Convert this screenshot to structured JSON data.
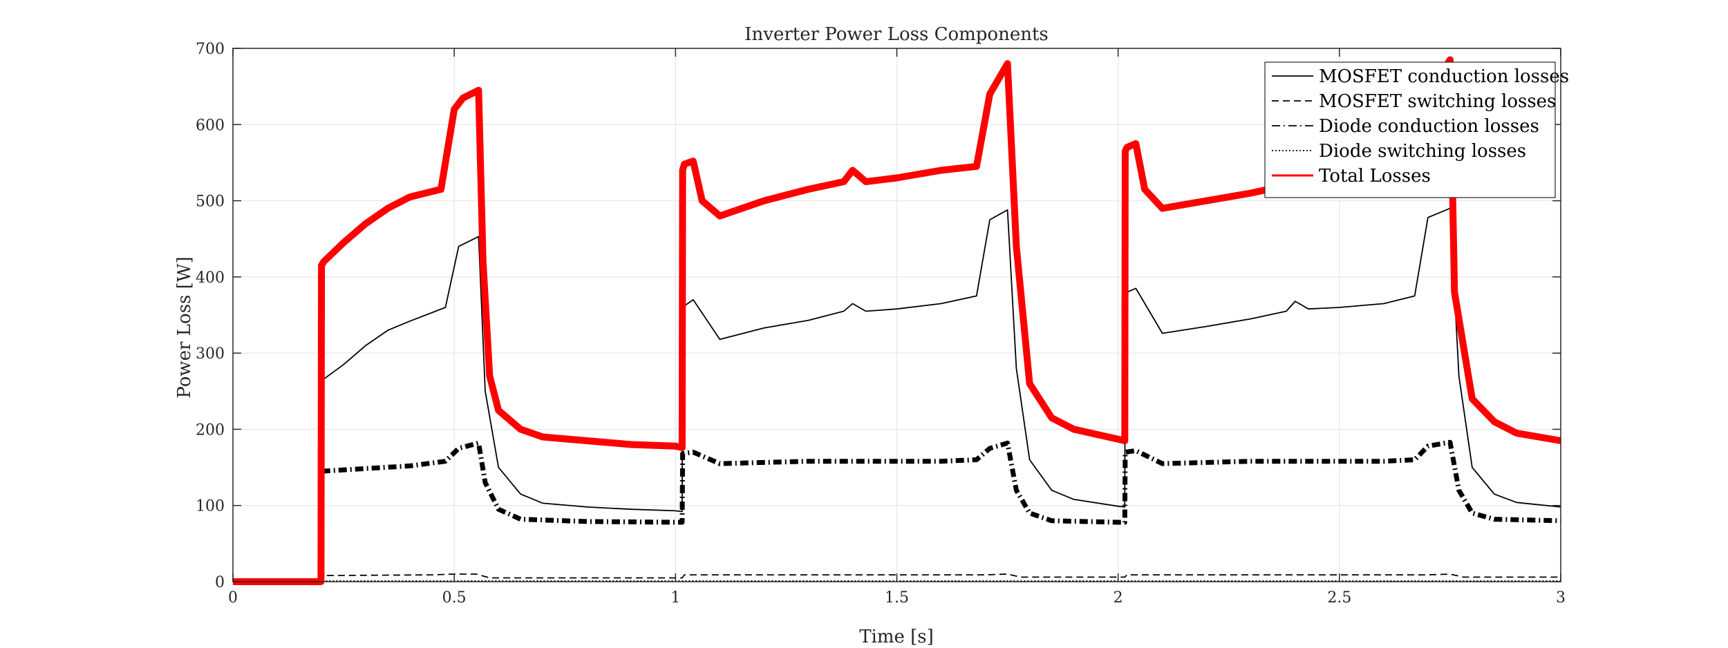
{
  "chart_data": {
    "type": "line",
    "title": "Inverter Power Loss Components",
    "xlabel": "Time [s]",
    "ylabel": "Power Loss [W]",
    "xlim": [
      0,
      3
    ],
    "ylim": [
      0,
      700
    ],
    "xticks": [
      0,
      0.5,
      1,
      1.5,
      2,
      2.5,
      3
    ],
    "xtick_labels": [
      "0",
      "0.5",
      "1",
      "1.5",
      "2",
      "2.5",
      "3"
    ],
    "yticks": [
      0,
      100,
      200,
      300,
      400,
      500,
      600,
      700
    ],
    "ytick_labels": [
      "0",
      "100",
      "200",
      "300",
      "400",
      "500",
      "600",
      "700"
    ],
    "grid": true,
    "legend_position": "top-right",
    "colors": {
      "black": "#000000",
      "red": "#ff0000",
      "grid": "#e6e6e6",
      "axis": "#262626"
    },
    "series": [
      {
        "name": "MOSFET conduction losses",
        "style": "solid",
        "color": "#000000",
        "x": [
          0,
          0.199,
          0.2,
          0.203,
          0.25,
          0.3,
          0.35,
          0.4,
          0.48,
          0.51,
          0.555,
          0.57,
          0.6,
          0.65,
          0.7,
          0.8,
          0.9,
          1.0,
          1.015,
          1.016,
          1.02,
          1.04,
          1.1,
          1.2,
          1.3,
          1.38,
          1.4,
          1.43,
          1.5,
          1.6,
          1.68,
          1.71,
          1.75,
          1.77,
          1.8,
          1.85,
          1.9,
          2.0,
          2.015,
          2.016,
          2.02,
          2.04,
          2.1,
          2.2,
          2.3,
          2.38,
          2.4,
          2.43,
          2.5,
          2.6,
          2.67,
          2.7,
          2.75,
          2.77,
          2.8,
          2.85,
          2.9,
          3.0
        ],
        "y": [
          0,
          0,
          180,
          265,
          285,
          310,
          330,
          342,
          360,
          440,
          453,
          250,
          150,
          115,
          103,
          98,
          95,
          93,
          92,
          350,
          362,
          370,
          318,
          333,
          343,
          355,
          365,
          355,
          358,
          365,
          375,
          475,
          488,
          280,
          160,
          120,
          108,
          99,
          98,
          370,
          380,
          385,
          326,
          335,
          345,
          355,
          368,
          358,
          360,
          365,
          375,
          478,
          490,
          270,
          150,
          115,
          104,
          98
        ]
      },
      {
        "name": "MOSFET switching losses",
        "style": "dashed",
        "color": "#000000",
        "x": [
          0,
          0.199,
          0.2,
          0.45,
          0.5,
          0.55,
          0.58,
          0.6,
          1.015,
          1.02,
          1.7,
          1.75,
          1.78,
          2.015,
          2.02,
          2.7,
          2.75,
          2.78,
          3.0
        ],
        "y": [
          0,
          0,
          8,
          9,
          10,
          10,
          5,
          5,
          5,
          9,
          9,
          10,
          6,
          6,
          9,
          9,
          10,
          6,
          6
        ]
      },
      {
        "name": "Diode conduction losses",
        "style": "dashdot",
        "color": "#000000",
        "x": [
          0,
          0.199,
          0.2,
          0.4,
          0.48,
          0.51,
          0.555,
          0.57,
          0.6,
          0.65,
          0.8,
          1.0,
          1.015,
          1.016,
          1.04,
          1.1,
          1.3,
          1.6,
          1.68,
          1.71,
          1.75,
          1.77,
          1.8,
          1.85,
          2.0,
          2.015,
          2.016,
          2.04,
          2.1,
          2.3,
          2.6,
          2.67,
          2.7,
          2.75,
          2.77,
          2.8,
          2.85,
          3.0
        ],
        "y": [
          0,
          0,
          145,
          152,
          158,
          175,
          182,
          130,
          95,
          82,
          79,
          78,
          78,
          168,
          170,
          155,
          158,
          158,
          160,
          175,
          182,
          120,
          90,
          80,
          78,
          78,
          170,
          172,
          155,
          158,
          158,
          160,
          178,
          183,
          120,
          90,
          82,
          80
        ]
      },
      {
        "name": "Diode switching losses",
        "style": "dotted",
        "color": "#000000",
        "x": [
          0,
          0.199,
          0.2,
          3.0
        ],
        "y": [
          0,
          0,
          1,
          1
        ]
      },
      {
        "name": "Total Losses",
        "style": "solid",
        "color": "#ff0000",
        "x": [
          0,
          0.199,
          0.2,
          0.205,
          0.25,
          0.3,
          0.35,
          0.4,
          0.47,
          0.5,
          0.52,
          0.555,
          0.565,
          0.58,
          0.6,
          0.65,
          0.7,
          0.8,
          0.9,
          1.0,
          1.015,
          1.016,
          1.02,
          1.04,
          1.06,
          1.1,
          1.2,
          1.3,
          1.38,
          1.4,
          1.43,
          1.5,
          1.6,
          1.68,
          1.71,
          1.75,
          1.77,
          1.8,
          1.85,
          1.9,
          2.0,
          2.015,
          2.016,
          2.02,
          2.04,
          2.06,
          2.1,
          2.2,
          2.3,
          2.38,
          2.4,
          2.43,
          2.5,
          2.6,
          2.67,
          2.7,
          2.75,
          2.76,
          2.8,
          2.85,
          2.9,
          3.0
        ],
        "y": [
          0,
          0,
          415,
          420,
          445,
          470,
          490,
          505,
          515,
          620,
          635,
          645,
          420,
          270,
          225,
          200,
          190,
          185,
          180,
          178,
          176,
          540,
          548,
          552,
          500,
          480,
          500,
          515,
          525,
          540,
          525,
          530,
          540,
          545,
          640,
          680,
          440,
          260,
          215,
          200,
          187,
          185,
          565,
          570,
          575,
          515,
          490,
          500,
          510,
          520,
          530,
          525,
          530,
          540,
          545,
          640,
          685,
          380,
          240,
          210,
          195,
          185
        ]
      }
    ]
  }
}
